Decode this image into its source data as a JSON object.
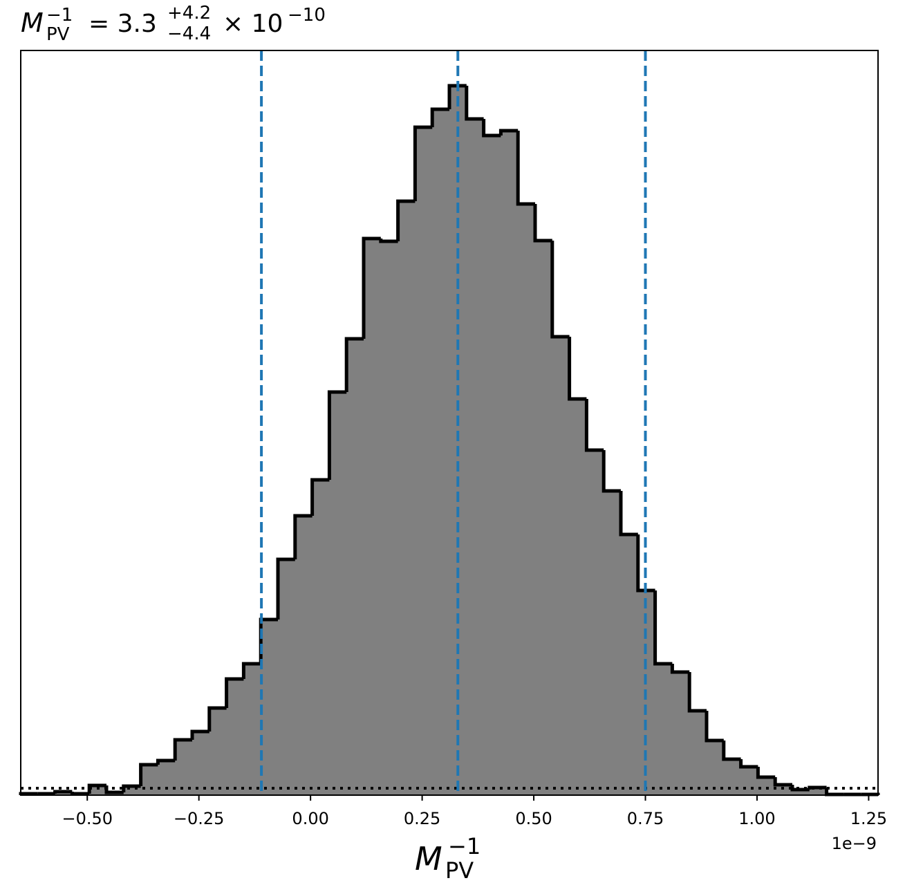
{
  "chart_data": {
    "type": "histogram",
    "title": {
      "symbol": "M",
      "symbol_sub": "PV",
      "symbol_sup": "−1",
      "value": "= 3.3",
      "plus": "+4.2",
      "minus": "−4.4",
      "times": "× 10",
      "exponent": "−10"
    },
    "xlabel": {
      "symbol": "M",
      "sub": "PV",
      "sup": "−1"
    },
    "x_offset_label": "1e−9",
    "bins": [
      -0.649,
      -0.6106,
      -0.5722,
      -0.5338,
      -0.4954,
      -0.457,
      -0.4186,
      -0.3802,
      -0.3418,
      -0.3034,
      -0.265,
      -0.2266,
      -0.1882,
      -0.1498,
      -0.1114,
      -0.073,
      -0.0346,
      0.0038,
      0.0422,
      0.0806,
      0.119,
      0.1574,
      0.1958,
      0.2342,
      0.2726,
      0.311,
      0.3494,
      0.3878,
      0.4262,
      0.4646,
      0.503,
      0.5414,
      0.5798,
      0.6182,
      0.6566,
      0.695,
      0.7334,
      0.7718,
      0.8102,
      0.8486,
      0.887,
      0.9254,
      0.9638,
      1.0022,
      1.0406,
      1.079,
      1.1174,
      1.1558,
      1.1942,
      1.2326,
      1.271
    ],
    "values": [
      2,
      2,
      5,
      2,
      14,
      4,
      13,
      44,
      50,
      80,
      92,
      126,
      168,
      190,
      254,
      341,
      404,
      456,
      583,
      660,
      805,
      801,
      859,
      966,
      992,
      1026,
      978,
      954,
      961,
      855,
      802,
      663,
      573,
      499,
      440,
      377,
      296,
      190,
      178,
      122,
      79,
      52,
      41,
      26,
      15,
      8,
      11,
      1,
      1,
      1
    ],
    "color": "#808080",
    "edge_color": "#000000",
    "quantiles": [
      -0.11,
      0.33,
      0.75
    ],
    "quantile_color": "#1f77b4",
    "reference_level": 10,
    "xlim": [
      -0.649,
      1.271
    ],
    "ylim": [
      0,
      1077
    ],
    "xticks": [
      {
        "value": -0.5,
        "label": "−0.50"
      },
      {
        "value": -0.25,
        "label": "−0.25"
      },
      {
        "value": 0,
        "label": "0.00"
      },
      {
        "value": 0.25,
        "label": "0.25"
      },
      {
        "value": 0.5,
        "label": "0.50"
      },
      {
        "value": 0.75,
        "label": "0.75"
      },
      {
        "value": 1,
        "label": "1.00"
      },
      {
        "value": 1.25,
        "label": "1.25"
      }
    ]
  }
}
